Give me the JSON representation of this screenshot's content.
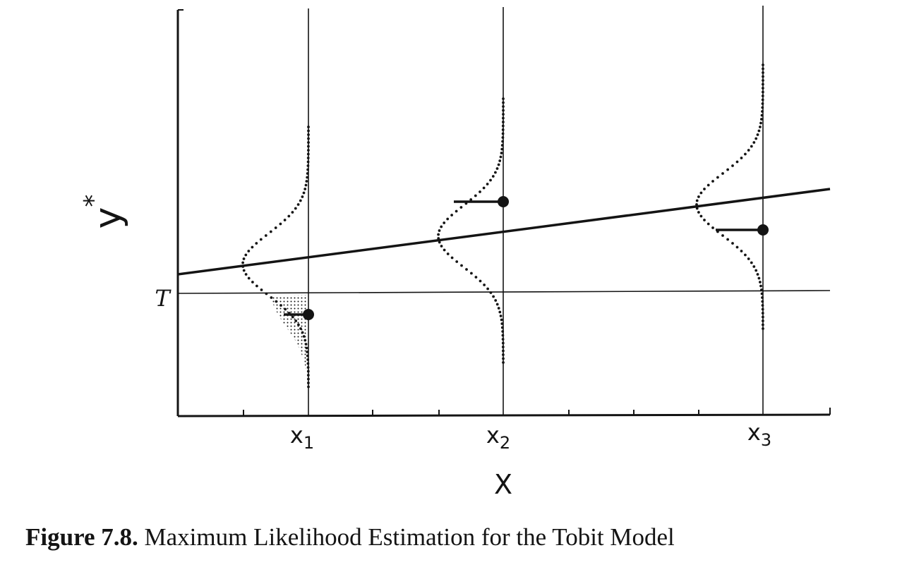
{
  "diagram": {
    "y_axis_label": "y",
    "y_axis_superscript": "*",
    "threshold_label": "T",
    "x_axis_label": "X",
    "x_ticks": [
      {
        "name": "x",
        "subscript": "1"
      },
      {
        "name": "x",
        "subscript": "2"
      },
      {
        "name": "x",
        "subscript": "3"
      }
    ],
    "ink_color": "#141414"
  },
  "caption": {
    "number": "Figure 7.8.",
    "text": "Maximum Likelihood Estimation for the Tobit Model"
  }
}
